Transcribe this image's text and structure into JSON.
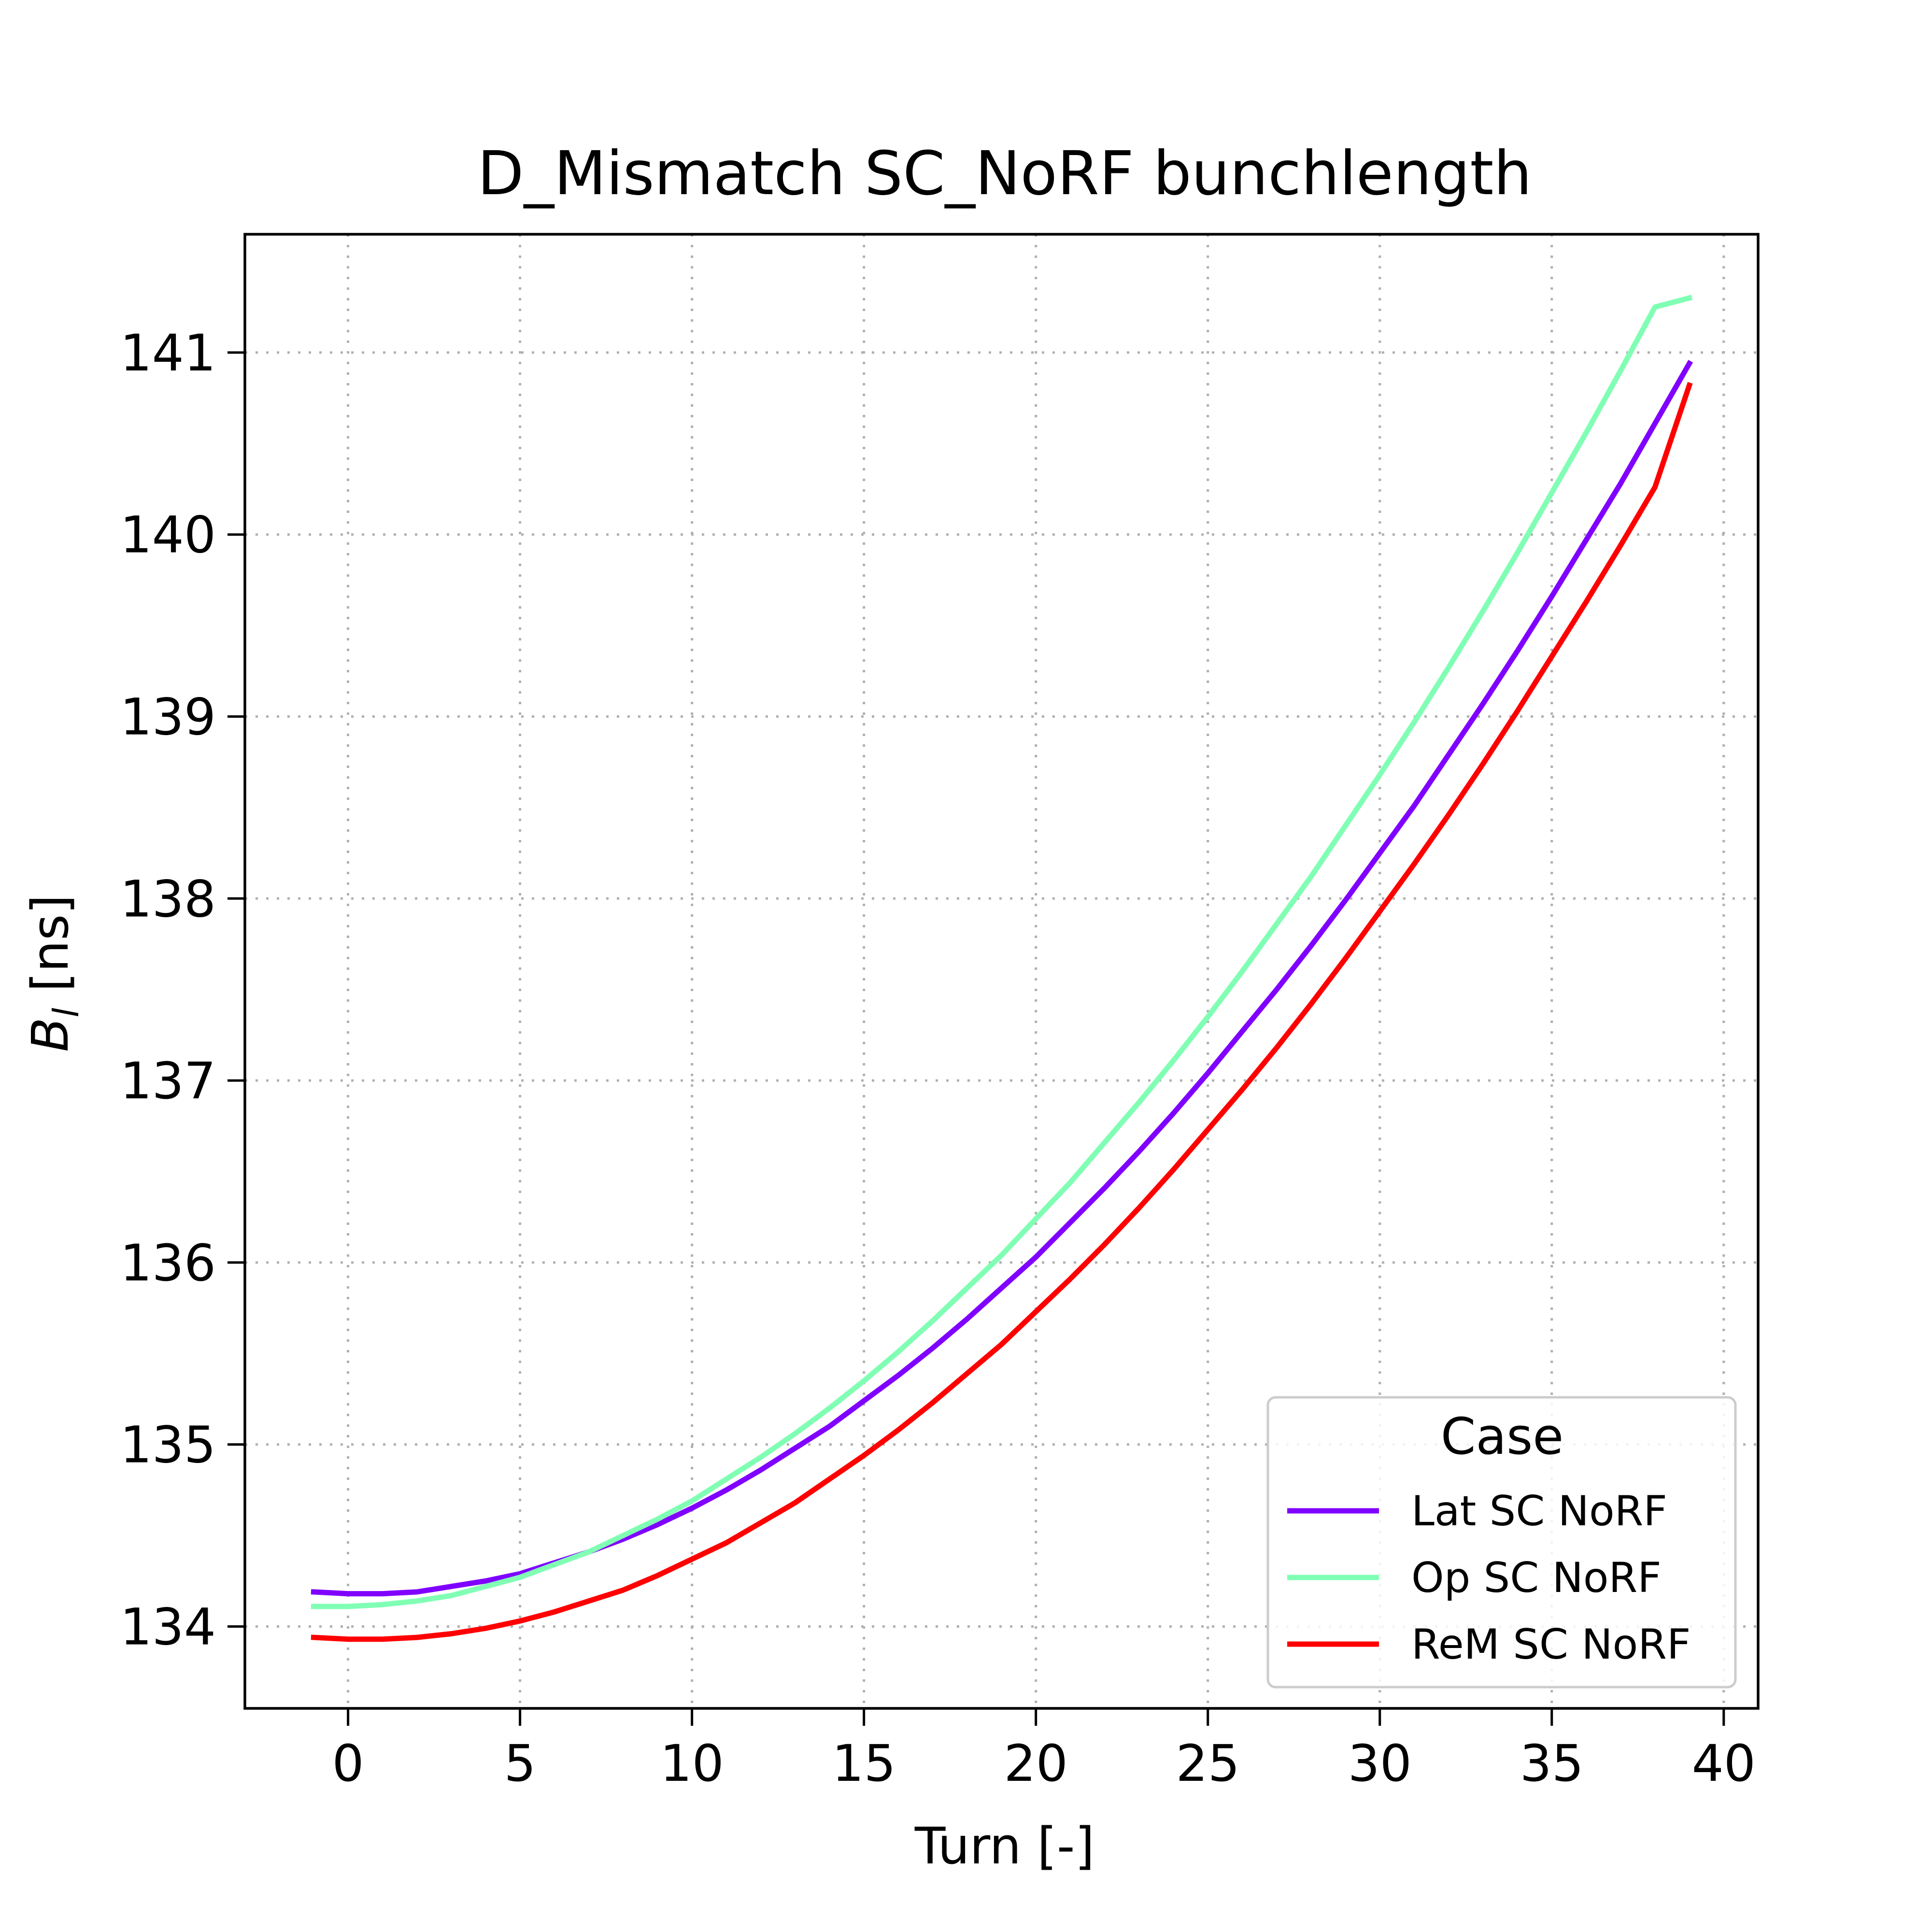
{
  "chart_data": {
    "type": "line",
    "title": "D_Mismatch SC_NoRF bunchlength",
    "xlabel": "Turn [-]",
    "ylabel_main": "B",
    "ylabel_sub": "l",
    "ylabel_rest": " [ns]",
    "xlim": [
      -3,
      41
    ],
    "ylim": [
      133.55,
      141.65
    ],
    "xticks": [
      0,
      5,
      10,
      15,
      20,
      25,
      30,
      35,
      40
    ],
    "yticks": [
      134,
      135,
      136,
      137,
      138,
      139,
      140,
      141
    ],
    "grid": true,
    "legend": {
      "title": "Case",
      "placement": "lower-right"
    },
    "x": [
      -1,
      0,
      1,
      2,
      3,
      4,
      5,
      6,
      7,
      8,
      9,
      10,
      11,
      12,
      13,
      14,
      15,
      16,
      17,
      18,
      19,
      20,
      21,
      22,
      23,
      24,
      25,
      26,
      27,
      28,
      29,
      30,
      31,
      32,
      33,
      34,
      35,
      36,
      37,
      38,
      39
    ],
    "series": [
      {
        "name": "Lat SC NoRF",
        "color": "#8000ff",
        "values": [
          134.19,
          134.18,
          134.18,
          134.19,
          134.22,
          134.25,
          134.29,
          134.35,
          134.41,
          134.48,
          134.56,
          134.65,
          134.75,
          134.86,
          134.98,
          135.1,
          135.24,
          135.38,
          135.53,
          135.69,
          135.86,
          136.03,
          136.22,
          136.41,
          136.61,
          136.82,
          137.04,
          137.27,
          137.5,
          137.74,
          137.99,
          138.25,
          138.51,
          138.79,
          139.07,
          139.36,
          139.66,
          139.97,
          140.28,
          140.61,
          140.94
        ]
      },
      {
        "name": "Op SC NoRF",
        "color": "#80ffb4",
        "values": [
          134.11,
          134.11,
          134.12,
          134.14,
          134.17,
          134.22,
          134.27,
          134.34,
          134.41,
          134.5,
          134.59,
          134.69,
          134.81,
          134.93,
          135.06,
          135.2,
          135.35,
          135.51,
          135.68,
          135.86,
          136.04,
          136.24,
          136.44,
          136.66,
          136.88,
          137.11,
          137.35,
          137.6,
          137.86,
          138.12,
          138.4,
          138.68,
          138.97,
          139.27,
          139.58,
          139.9,
          140.23,
          140.56,
          140.9,
          141.25,
          141.3
        ]
      },
      {
        "name": "ReM SC NoRF",
        "color": "#ff0000",
        "values": [
          133.94,
          133.93,
          133.93,
          133.94,
          133.96,
          133.99,
          134.03,
          134.08,
          134.14,
          134.2,
          134.28,
          134.37,
          134.46,
          134.57,
          134.68,
          134.81,
          134.94,
          135.08,
          135.23,
          135.39,
          135.55,
          135.73,
          135.91,
          136.1,
          136.3,
          136.51,
          136.73,
          136.95,
          137.18,
          137.42,
          137.67,
          137.93,
          138.19,
          138.46,
          138.74,
          139.03,
          139.33,
          139.63,
          139.94,
          140.26,
          140.82
        ]
      }
    ]
  }
}
